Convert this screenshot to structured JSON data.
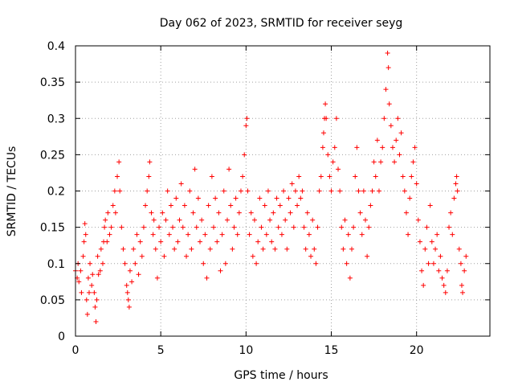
{
  "chart_data": {
    "type": "scatter",
    "title": "Day 062 of 2023, SRMTID for receiver seyg",
    "xlabel": "GPS time / hours",
    "ylabel": "SRMTID / TECUs",
    "xlim": [
      0,
      24.3
    ],
    "ylim": [
      0,
      0.4
    ],
    "x_ticks": [
      0,
      5,
      10,
      15,
      20
    ],
    "x_tick_labels": [
      "0",
      "5",
      "10",
      "15",
      "20"
    ],
    "y_ticks": [
      0,
      0.05,
      0.1,
      0.15,
      0.2,
      0.25,
      0.3,
      0.35,
      0.4
    ],
    "y_tick_labels": [
      "0",
      "0.05",
      "0.1",
      "0.15",
      "0.2",
      "0.25",
      "0.3",
      "0.35",
      "0.4"
    ],
    "grid": true,
    "marker": "+",
    "color": "#ff0000",
    "series": [
      {
        "name": "SRMTID",
        "points": [
          [
            0.0,
            0.09
          ],
          [
            0.1,
            0.08
          ],
          [
            0.15,
            0.1
          ],
          [
            0.2,
            0.075
          ],
          [
            0.3,
            0.09
          ],
          [
            0.35,
            0.06
          ],
          [
            0.45,
            0.11
          ],
          [
            0.5,
            0.13
          ],
          [
            0.55,
            0.155
          ],
          [
            0.6,
            0.14
          ],
          [
            0.65,
            0.05
          ],
          [
            0.7,
            0.03
          ],
          [
            0.75,
            0.08
          ],
          [
            0.8,
            0.06
          ],
          [
            0.85,
            0.1
          ],
          [
            0.95,
            0.07
          ],
          [
            1.0,
            0.085
          ],
          [
            1.1,
            0.06
          ],
          [
            1.15,
            0.04
          ],
          [
            1.2,
            0.02
          ],
          [
            1.25,
            0.05
          ],
          [
            1.3,
            0.11
          ],
          [
            1.35,
            0.085
          ],
          [
            1.45,
            0.09
          ],
          [
            1.5,
            0.12
          ],
          [
            1.6,
            0.1
          ],
          [
            1.65,
            0.13
          ],
          [
            1.7,
            0.15
          ],
          [
            1.75,
            0.16
          ],
          [
            1.85,
            0.13
          ],
          [
            1.9,
            0.17
          ],
          [
            2.0,
            0.14
          ],
          [
            2.1,
            0.15
          ],
          [
            2.2,
            0.18
          ],
          [
            2.3,
            0.2
          ],
          [
            2.35,
            0.17
          ],
          [
            2.45,
            0.22
          ],
          [
            2.55,
            0.24
          ],
          [
            2.6,
            0.2
          ],
          [
            2.7,
            0.15
          ],
          [
            2.8,
            0.12
          ],
          [
            2.9,
            0.1
          ],
          [
            3.0,
            0.07
          ],
          [
            3.05,
            0.06
          ],
          [
            3.1,
            0.05
          ],
          [
            3.15,
            0.04
          ],
          [
            3.2,
            0.09
          ],
          [
            3.3,
            0.075
          ],
          [
            3.4,
            0.12
          ],
          [
            3.5,
            0.1
          ],
          [
            3.6,
            0.14
          ],
          [
            3.7,
            0.085
          ],
          [
            3.8,
            0.13
          ],
          [
            3.9,
            0.11
          ],
          [
            4.0,
            0.15
          ],
          [
            4.1,
            0.18
          ],
          [
            4.2,
            0.2
          ],
          [
            4.3,
            0.22
          ],
          [
            4.35,
            0.24
          ],
          [
            4.45,
            0.17
          ],
          [
            4.55,
            0.14
          ],
          [
            4.6,
            0.16
          ],
          [
            4.7,
            0.12
          ],
          [
            4.8,
            0.08
          ],
          [
            4.9,
            0.15
          ],
          [
            5.0,
            0.13
          ],
          [
            5.1,
            0.17
          ],
          [
            5.2,
            0.11
          ],
          [
            5.3,
            0.16
          ],
          [
            5.4,
            0.2
          ],
          [
            5.5,
            0.14
          ],
          [
            5.6,
            0.18
          ],
          [
            5.7,
            0.15
          ],
          [
            5.8,
            0.12
          ],
          [
            5.9,
            0.19
          ],
          [
            6.0,
            0.13
          ],
          [
            6.1,
            0.16
          ],
          [
            6.2,
            0.21
          ],
          [
            6.3,
            0.15
          ],
          [
            6.4,
            0.18
          ],
          [
            6.5,
            0.11
          ],
          [
            6.6,
            0.14
          ],
          [
            6.7,
            0.2
          ],
          [
            6.8,
            0.12
          ],
          [
            6.9,
            0.17
          ],
          [
            7.0,
            0.23
          ],
          [
            7.1,
            0.15
          ],
          [
            7.2,
            0.19
          ],
          [
            7.3,
            0.13
          ],
          [
            7.4,
            0.16
          ],
          [
            7.5,
            0.1
          ],
          [
            7.6,
            0.14
          ],
          [
            7.7,
            0.08
          ],
          [
            7.8,
            0.18
          ],
          [
            7.9,
            0.12
          ],
          [
            8.0,
            0.22
          ],
          [
            8.1,
            0.15
          ],
          [
            8.2,
            0.19
          ],
          [
            8.3,
            0.13
          ],
          [
            8.4,
            0.17
          ],
          [
            8.5,
            0.09
          ],
          [
            8.6,
            0.14
          ],
          [
            8.7,
            0.2
          ],
          [
            8.8,
            0.1
          ],
          [
            8.9,
            0.16
          ],
          [
            9.0,
            0.23
          ],
          [
            9.1,
            0.18
          ],
          [
            9.2,
            0.12
          ],
          [
            9.3,
            0.15
          ],
          [
            9.4,
            0.19
          ],
          [
            9.5,
            0.14
          ],
          [
            9.6,
            0.17
          ],
          [
            9.7,
            0.2
          ],
          [
            9.8,
            0.22
          ],
          [
            9.9,
            0.25
          ],
          [
            10.0,
            0.29
          ],
          [
            10.05,
            0.3
          ],
          [
            10.1,
            0.2
          ],
          [
            10.2,
            0.14
          ],
          [
            10.3,
            0.17
          ],
          [
            10.4,
            0.11
          ],
          [
            10.5,
            0.16
          ],
          [
            10.6,
            0.1
          ],
          [
            10.7,
            0.13
          ],
          [
            10.8,
            0.19
          ],
          [
            10.9,
            0.15
          ],
          [
            11.0,
            0.12
          ],
          [
            11.1,
            0.18
          ],
          [
            11.2,
            0.14
          ],
          [
            11.3,
            0.2
          ],
          [
            11.4,
            0.16
          ],
          [
            11.5,
            0.13
          ],
          [
            11.6,
            0.17
          ],
          [
            11.7,
            0.12
          ],
          [
            11.8,
            0.19
          ],
          [
            11.9,
            0.15
          ],
          [
            12.0,
            0.18
          ],
          [
            12.1,
            0.14
          ],
          [
            12.2,
            0.2
          ],
          [
            12.3,
            0.16
          ],
          [
            12.4,
            0.12
          ],
          [
            12.5,
            0.19
          ],
          [
            12.6,
            0.17
          ],
          [
            12.7,
            0.21
          ],
          [
            12.8,
            0.15
          ],
          [
            12.9,
            0.2
          ],
          [
            13.0,
            0.18
          ],
          [
            13.1,
            0.22
          ],
          [
            13.2,
            0.19
          ],
          [
            13.3,
            0.2
          ],
          [
            13.4,
            0.15
          ],
          [
            13.5,
            0.12
          ],
          [
            13.6,
            0.17
          ],
          [
            13.7,
            0.14
          ],
          [
            13.8,
            0.11
          ],
          [
            13.9,
            0.16
          ],
          [
            14.0,
            0.12
          ],
          [
            14.1,
            0.1
          ],
          [
            14.2,
            0.15
          ],
          [
            14.3,
            0.2
          ],
          [
            14.4,
            0.22
          ],
          [
            14.5,
            0.26
          ],
          [
            14.55,
            0.28
          ],
          [
            14.6,
            0.3
          ],
          [
            14.65,
            0.32
          ],
          [
            14.7,
            0.3
          ],
          [
            14.8,
            0.25
          ],
          [
            14.9,
            0.22
          ],
          [
            15.0,
            0.2
          ],
          [
            15.1,
            0.24
          ],
          [
            15.2,
            0.26
          ],
          [
            15.3,
            0.3
          ],
          [
            15.4,
            0.23
          ],
          [
            15.5,
            0.2
          ],
          [
            15.6,
            0.15
          ],
          [
            15.7,
            0.12
          ],
          [
            15.8,
            0.16
          ],
          [
            15.9,
            0.1
          ],
          [
            16.0,
            0.14
          ],
          [
            16.1,
            0.08
          ],
          [
            16.2,
            0.12
          ],
          [
            16.3,
            0.15
          ],
          [
            16.4,
            0.22
          ],
          [
            16.5,
            0.26
          ],
          [
            16.6,
            0.2
          ],
          [
            16.7,
            0.17
          ],
          [
            16.8,
            0.14
          ],
          [
            16.9,
            0.2
          ],
          [
            17.0,
            0.16
          ],
          [
            17.1,
            0.11
          ],
          [
            17.2,
            0.15
          ],
          [
            17.3,
            0.18
          ],
          [
            17.4,
            0.2
          ],
          [
            17.5,
            0.24
          ],
          [
            17.6,
            0.22
          ],
          [
            17.7,
            0.27
          ],
          [
            17.8,
            0.2
          ],
          [
            17.9,
            0.24
          ],
          [
            18.0,
            0.26
          ],
          [
            18.1,
            0.3
          ],
          [
            18.2,
            0.34
          ],
          [
            18.3,
            0.39
          ],
          [
            18.35,
            0.37
          ],
          [
            18.4,
            0.32
          ],
          [
            18.5,
            0.29
          ],
          [
            18.6,
            0.26
          ],
          [
            18.7,
            0.24
          ],
          [
            18.8,
            0.27
          ],
          [
            18.9,
            0.3
          ],
          [
            19.0,
            0.25
          ],
          [
            19.1,
            0.28
          ],
          [
            19.2,
            0.22
          ],
          [
            19.3,
            0.2
          ],
          [
            19.4,
            0.17
          ],
          [
            19.5,
            0.14
          ],
          [
            19.6,
            0.19
          ],
          [
            19.7,
            0.22
          ],
          [
            19.8,
            0.24
          ],
          [
            19.9,
            0.26
          ],
          [
            20.0,
            0.21
          ],
          [
            20.1,
            0.16
          ],
          [
            20.2,
            0.13
          ],
          [
            20.3,
            0.09
          ],
          [
            20.4,
            0.07
          ],
          [
            20.5,
            0.12
          ],
          [
            20.6,
            0.15
          ],
          [
            20.7,
            0.1
          ],
          [
            20.8,
            0.18
          ],
          [
            20.9,
            0.13
          ],
          [
            21.0,
            0.1
          ],
          [
            21.1,
            0.12
          ],
          [
            21.2,
            0.14
          ],
          [
            21.3,
            0.09
          ],
          [
            21.4,
            0.11
          ],
          [
            21.5,
            0.08
          ],
          [
            21.6,
            0.07
          ],
          [
            21.7,
            0.06
          ],
          [
            21.8,
            0.09
          ],
          [
            21.9,
            0.15
          ],
          [
            22.0,
            0.17
          ],
          [
            22.1,
            0.14
          ],
          [
            22.2,
            0.19
          ],
          [
            22.3,
            0.21
          ],
          [
            22.35,
            0.22
          ],
          [
            22.4,
            0.2
          ],
          [
            22.5,
            0.12
          ],
          [
            22.6,
            0.1
          ],
          [
            22.65,
            0.07
          ],
          [
            22.7,
            0.06
          ],
          [
            22.8,
            0.09
          ],
          [
            22.9,
            0.11
          ]
        ]
      }
    ]
  }
}
